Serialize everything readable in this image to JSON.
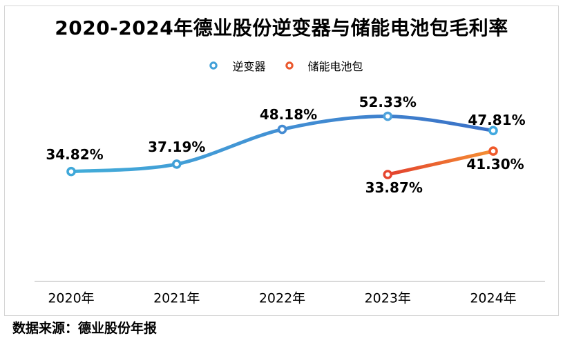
{
  "colors": {
    "background": "#FFFFFF",
    "frame_border": "#D5D5D5",
    "axis_line": "#D9D9D9",
    "text": "#000000"
  },
  "source": {
    "text": "数据来源：德业股份年报"
  },
  "chart_data": {
    "type": "line",
    "title": "2020-2024年德业股份逆变器与储能电池包毛利率",
    "categories": [
      "2020年",
      "2021年",
      "2022年",
      "2023年",
      "2024年"
    ],
    "xlabel": "",
    "ylabel": "",
    "ylim": [
      0,
      60
    ],
    "grid": false,
    "legend_position": "top-center",
    "series": [
      {
        "name": "逆变器",
        "values": [
          34.82,
          37.19,
          48.18,
          52.33,
          47.81
        ],
        "labels": [
          "34.82%",
          "37.19%",
          "48.18%",
          "52.33%",
          "47.81%"
        ],
        "smooth": true,
        "color_stops": [
          "#42ADD9",
          "#4290D4",
          "#3A70C6"
        ],
        "marker_colors": [
          "#3FA8D9",
          "#41A0D7",
          "#448BD2",
          "#4FA3DC",
          "#41A9DF"
        ],
        "legend_marker_color": "#41A0D8",
        "label_offsets": [
          [
            5,
            -25
          ],
          [
            0,
            -25
          ],
          [
            9,
            -22
          ],
          [
            0,
            -21
          ],
          [
            5,
            -15
          ]
        ]
      },
      {
        "name": "储能电池包",
        "values": [
          null,
          null,
          null,
          33.87,
          41.3
        ],
        "labels": [
          null,
          null,
          null,
          "33.87%",
          "41.30%"
        ],
        "smooth": false,
        "color_stops": [
          "#E2402E",
          "#F59133"
        ],
        "marker_colors": [
          null,
          null,
          null,
          "#E6452E",
          "#EF5A2B"
        ],
        "legend_marker_color": "#EA572C",
        "label_offsets": [
          null,
          null,
          null,
          [
            9,
            19
          ],
          [
            3,
            19
          ]
        ]
      }
    ]
  }
}
